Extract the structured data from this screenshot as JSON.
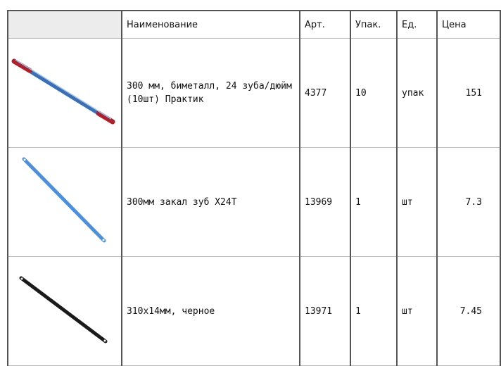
{
  "table": {
    "header": [
      "Наименование",
      "Арт.",
      "Упак.",
      "Ед.",
      "Цена"
    ],
    "rows": [
      [
        "300 мм, биметалл, 24 зуба/дюйм (10шт) Практик",
        "4377",
        "10",
        "упак",
        "151"
      ],
      [
        "300мм закал зуб X24T",
        "13969",
        "1",
        "шт",
        "7.3"
      ],
      [
        "310x14мм, черное",
        "13971",
        "1",
        "шт",
        "7.45"
      ]
    ]
  }
}
